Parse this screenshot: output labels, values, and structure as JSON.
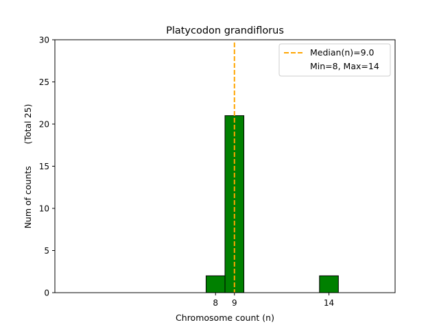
{
  "chart_data": {
    "type": "bar",
    "title": "Platycodon grandiflorus",
    "xlabel": "Chromosome count (n)",
    "ylabel": "Num of counts        (Total 25)",
    "xlim": [
      -0.5,
      17.5
    ],
    "ylim": [
      0,
      30
    ],
    "grid": false,
    "x_ticks": [
      8,
      9,
      14
    ],
    "y_ticks": [
      0,
      5,
      10,
      15,
      20,
      25,
      30
    ],
    "bars": [
      {
        "x": 8,
        "value": 2
      },
      {
        "x": 9,
        "value": 21
      },
      {
        "x": 14,
        "value": 2
      }
    ],
    "bar_color": "#008000",
    "bar_edge_color": "#000000",
    "median_line": {
      "x": 9.0,
      "color": "#FFA500",
      "label": "Median(n)=9.0"
    },
    "legend": {
      "placement": "top-right",
      "entries": [
        "Median(n)=9.0",
        "Min=8, Max=14"
      ]
    }
  }
}
